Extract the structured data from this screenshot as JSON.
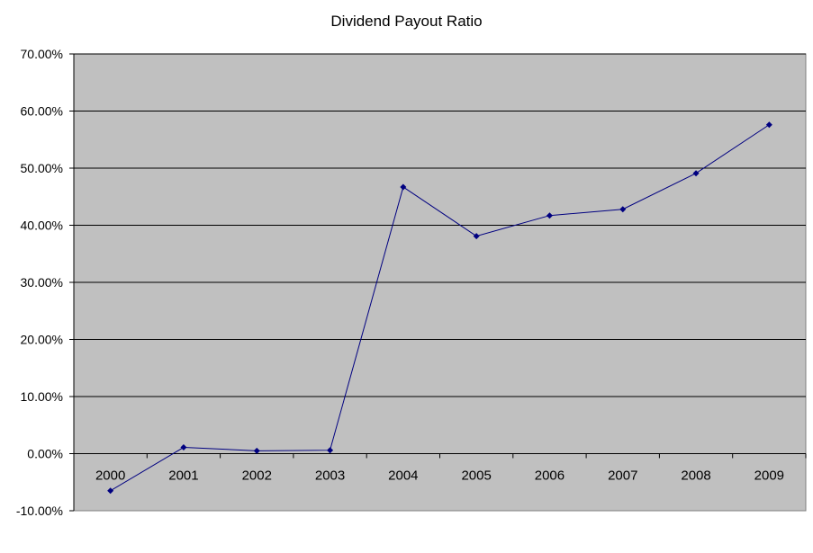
{
  "chart_data": {
    "type": "line",
    "title": "Dividend Payout Ratio",
    "xlabel": "",
    "ylabel": "",
    "categories": [
      "2000",
      "2001",
      "2002",
      "2003",
      "2004",
      "2005",
      "2006",
      "2007",
      "2008",
      "2009"
    ],
    "series": [
      {
        "values": [
          -6.5,
          1.1,
          0.5,
          0.6,
          46.7,
          38.1,
          41.7,
          42.8,
          49.1,
          57.6
        ]
      }
    ],
    "ylim": [
      -10,
      70
    ],
    "ytick_step": 10,
    "ytick_labels": [
      "-10.00%",
      "0.00%",
      "10.00%",
      "20.00%",
      "30.00%",
      "40.00%",
      "50.00%",
      "60.00%",
      "70.00%"
    ],
    "grid": true,
    "plot_background": "#c0c0c0",
    "line_color": "#000080",
    "legend": "none"
  }
}
